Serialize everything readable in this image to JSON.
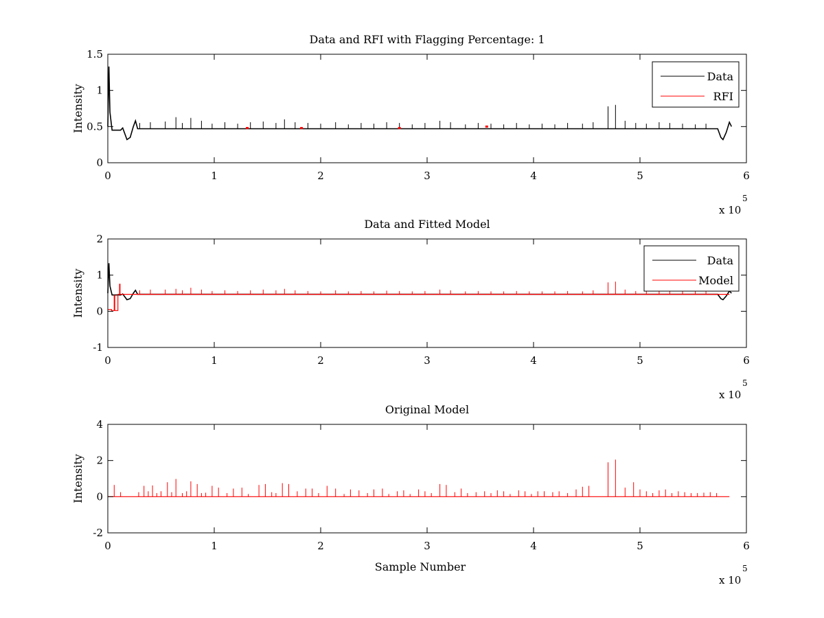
{
  "chart_data": [
    {
      "type": "line",
      "title": "Data and RFI with Flagging Percentage: 1",
      "xlabel": "",
      "ylabel": "Intensity",
      "xlim": [
        0,
        600000
      ],
      "ylim": [
        0,
        1.5
      ],
      "xticks": [
        0,
        1,
        2,
        3,
        4,
        5,
        6
      ],
      "yticks": [
        0,
        0.5,
        1,
        1.5
      ],
      "x_exponent": {
        "base": "x 10",
        "power": "5"
      },
      "grid": false,
      "legend_position": "top-right",
      "baseline": 0.47,
      "series": [
        {
          "name": "Data",
          "color": "#000000",
          "points": [
            [
              0,
              0.5
            ],
            [
              1000,
              1.33
            ],
            [
              2000,
              0.7
            ],
            [
              4000,
              0.45
            ],
            [
              12000,
              0.45
            ],
            [
              14000,
              0.48
            ],
            [
              18000,
              0.32
            ],
            [
              21000,
              0.35
            ],
            [
              24000,
              0.5
            ],
            [
              26000,
              0.58
            ],
            [
              28000,
              0.47
            ],
            [
              573000,
              0.47
            ],
            [
              576000,
              0.35
            ],
            [
              578000,
              0.32
            ],
            [
              581000,
              0.42
            ],
            [
              584000,
              0.56
            ],
            [
              586000,
              0.5
            ]
          ],
          "spikes": [
            [
              30000,
              0.55
            ],
            [
              40000,
              0.56
            ],
            [
              54000,
              0.57
            ],
            [
              64000,
              0.63
            ],
            [
              70000,
              0.55
            ],
            [
              78000,
              0.62
            ],
            [
              88000,
              0.58
            ],
            [
              98000,
              0.54
            ],
            [
              110000,
              0.56
            ],
            [
              122000,
              0.54
            ],
            [
              134000,
              0.56
            ],
            [
              146000,
              0.57
            ],
            [
              158000,
              0.55
            ],
            [
              166000,
              0.6
            ],
            [
              176000,
              0.56
            ],
            [
              188000,
              0.55
            ],
            [
              200000,
              0.54
            ],
            [
              214000,
              0.56
            ],
            [
              226000,
              0.53
            ],
            [
              238000,
              0.55
            ],
            [
              250000,
              0.54
            ],
            [
              262000,
              0.56
            ],
            [
              274000,
              0.55
            ],
            [
              286000,
              0.53
            ],
            [
              298000,
              0.55
            ],
            [
              312000,
              0.58
            ],
            [
              322000,
              0.56
            ],
            [
              336000,
              0.53
            ],
            [
              348000,
              0.55
            ],
            [
              360000,
              0.54
            ],
            [
              372000,
              0.53
            ],
            [
              384000,
              0.55
            ],
            [
              396000,
              0.53
            ],
            [
              408000,
              0.54
            ],
            [
              420000,
              0.53
            ],
            [
              432000,
              0.55
            ],
            [
              446000,
              0.54
            ],
            [
              456000,
              0.56
            ],
            [
              470000,
              0.78
            ],
            [
              477000,
              0.8
            ],
            [
              486000,
              0.58
            ],
            [
              496000,
              0.55
            ],
            [
              506000,
              0.54
            ],
            [
              518000,
              0.56
            ],
            [
              528000,
              0.55
            ],
            [
              540000,
              0.54
            ],
            [
              552000,
              0.53
            ],
            [
              562000,
              0.54
            ]
          ]
        },
        {
          "name": "RFI",
          "color": "#ff0000",
          "markers": [
            [
              131000,
              0.48
            ],
            [
              182000,
              0.48
            ],
            [
              274000,
              0.48
            ],
            [
              356000,
              0.5
            ]
          ]
        }
      ]
    },
    {
      "type": "line",
      "title": "Data and Fitted Model",
      "xlabel": "",
      "ylabel": "Intensity",
      "xlim": [
        0,
        600000
      ],
      "ylim": [
        -1,
        2
      ],
      "xticks": [
        0,
        1,
        2,
        3,
        4,
        5,
        6
      ],
      "yticks": [
        -1,
        0,
        1,
        2
      ],
      "x_exponent": {
        "base": "x 10",
        "power": "5"
      },
      "grid": false,
      "legend_position": "top-right",
      "series": [
        {
          "name": "Data",
          "color": "#000000",
          "points": [
            [
              0,
              0.5
            ],
            [
              1000,
              1.33
            ],
            [
              2000,
              0.7
            ],
            [
              4000,
              0.45
            ],
            [
              12000,
              0.45
            ],
            [
              14000,
              0.48
            ],
            [
              18000,
              0.32
            ],
            [
              21000,
              0.35
            ],
            [
              24000,
              0.5
            ],
            [
              26000,
              0.58
            ],
            [
              28000,
              0.47
            ],
            [
              573000,
              0.47
            ],
            [
              576000,
              0.35
            ],
            [
              578000,
              0.32
            ],
            [
              581000,
              0.42
            ],
            [
              584000,
              0.56
            ],
            [
              586000,
              0.5
            ]
          ]
        },
        {
          "name": "Model",
          "color": "#ff0000",
          "points": [
            [
              0,
              0.05
            ],
            [
              3500,
              0.05
            ],
            [
              3500,
              0.02
            ],
            [
              6000,
              0.02
            ],
            [
              6000,
              0.44
            ],
            [
              6500,
              0.44
            ],
            [
              6500,
              0.02
            ],
            [
              9500,
              0.02
            ],
            [
              9500,
              0.47
            ],
            [
              11000,
              0.47
            ],
            [
              11000,
              0.75
            ],
            [
              11500,
              0.75
            ],
            [
              11500,
              0.47
            ],
            [
              584000,
              0.47
            ]
          ],
          "spikes": [
            [
              30000,
              0.58
            ],
            [
              40000,
              0.6
            ],
            [
              54000,
              0.6
            ],
            [
              64000,
              0.62
            ],
            [
              70000,
              0.58
            ],
            [
              78000,
              0.65
            ],
            [
              88000,
              0.6
            ],
            [
              98000,
              0.56
            ],
            [
              110000,
              0.58
            ],
            [
              122000,
              0.56
            ],
            [
              134000,
              0.58
            ],
            [
              146000,
              0.6
            ],
            [
              158000,
              0.58
            ],
            [
              166000,
              0.62
            ],
            [
              176000,
              0.58
            ],
            [
              188000,
              0.56
            ],
            [
              200000,
              0.55
            ],
            [
              214000,
              0.58
            ],
            [
              226000,
              0.55
            ],
            [
              238000,
              0.56
            ],
            [
              250000,
              0.55
            ],
            [
              262000,
              0.57
            ],
            [
              274000,
              0.56
            ],
            [
              286000,
              0.55
            ],
            [
              298000,
              0.56
            ],
            [
              312000,
              0.6
            ],
            [
              322000,
              0.58
            ],
            [
              336000,
              0.55
            ],
            [
              348000,
              0.56
            ],
            [
              360000,
              0.55
            ],
            [
              372000,
              0.55
            ],
            [
              384000,
              0.56
            ],
            [
              396000,
              0.55
            ],
            [
              408000,
              0.55
            ],
            [
              420000,
              0.55
            ],
            [
              432000,
              0.56
            ],
            [
              446000,
              0.55
            ],
            [
              456000,
              0.58
            ],
            [
              470000,
              0.8
            ],
            [
              477000,
              0.82
            ],
            [
              486000,
              0.6
            ],
            [
              496000,
              0.56
            ],
            [
              506000,
              0.55
            ],
            [
              518000,
              0.57
            ],
            [
              528000,
              0.56
            ],
            [
              540000,
              0.55
            ],
            [
              552000,
              0.55
            ],
            [
              562000,
              0.55
            ]
          ]
        }
      ]
    },
    {
      "type": "line",
      "title": "Original Model",
      "xlabel": "Sample Number",
      "ylabel": "Intensity",
      "xlim": [
        0,
        600000
      ],
      "ylim": [
        -2,
        4
      ],
      "xticks": [
        0,
        1,
        2,
        3,
        4,
        5,
        6
      ],
      "yticks": [
        -2,
        0,
        2,
        4
      ],
      "x_exponent": {
        "base": "x 10",
        "power": "5"
      },
      "grid": false,
      "series": [
        {
          "color": "#ff0000",
          "points": [
            [
              0,
              0
            ],
            [
              584000,
              0
            ]
          ],
          "spikes": [
            [
              6000,
              0.65
            ],
            [
              12000,
              0.25
            ],
            [
              29000,
              0.25
            ],
            [
              34000,
              0.6
            ],
            [
              38000,
              0.3
            ],
            [
              42000,
              0.62
            ],
            [
              46000,
              0.2
            ],
            [
              50000,
              0.3
            ],
            [
              56000,
              0.8
            ],
            [
              60000,
              0.25
            ],
            [
              64000,
              0.98
            ],
            [
              70000,
              0.2
            ],
            [
              74000,
              0.3
            ],
            [
              78000,
              0.85
            ],
            [
              84000,
              0.7
            ],
            [
              88000,
              0.2
            ],
            [
              92000,
              0.22
            ],
            [
              98000,
              0.6
            ],
            [
              104000,
              0.5
            ],
            [
              112000,
              0.2
            ],
            [
              118000,
              0.45
            ],
            [
              126000,
              0.5
            ],
            [
              132000,
              0.15
            ],
            [
              142000,
              0.65
            ],
            [
              148000,
              0.7
            ],
            [
              154000,
              0.25
            ],
            [
              158000,
              0.2
            ],
            [
              164000,
              0.75
            ],
            [
              170000,
              0.7
            ],
            [
              178000,
              0.3
            ],
            [
              186000,
              0.45
            ],
            [
              192000,
              0.45
            ],
            [
              198000,
              0.2
            ],
            [
              206000,
              0.6
            ],
            [
              214000,
              0.45
            ],
            [
              222000,
              0.15
            ],
            [
              228000,
              0.4
            ],
            [
              236000,
              0.35
            ],
            [
              244000,
              0.2
            ],
            [
              250000,
              0.4
            ],
            [
              258000,
              0.45
            ],
            [
              264000,
              0.15
            ],
            [
              272000,
              0.3
            ],
            [
              278000,
              0.35
            ],
            [
              284000,
              0.15
            ],
            [
              292000,
              0.4
            ],
            [
              298000,
              0.3
            ],
            [
              304000,
              0.2
            ],
            [
              312000,
              0.7
            ],
            [
              318000,
              0.65
            ],
            [
              326000,
              0.25
            ],
            [
              332000,
              0.45
            ],
            [
              338000,
              0.2
            ],
            [
              346000,
              0.25
            ],
            [
              354000,
              0.3
            ],
            [
              360000,
              0.2
            ],
            [
              366000,
              0.35
            ],
            [
              372000,
              0.3
            ],
            [
              378000,
              0.15
            ],
            [
              386000,
              0.35
            ],
            [
              392000,
              0.3
            ],
            [
              398000,
              0.15
            ],
            [
              404000,
              0.3
            ],
            [
              410000,
              0.3
            ],
            [
              418000,
              0.25
            ],
            [
              424000,
              0.3
            ],
            [
              432000,
              0.2
            ],
            [
              440000,
              0.4
            ],
            [
              446000,
              0.55
            ],
            [
              452000,
              0.6
            ],
            [
              470000,
              1.9
            ],
            [
              477000,
              2.05
            ],
            [
              486000,
              0.5
            ],
            [
              494000,
              0.8
            ],
            [
              500000,
              0.4
            ],
            [
              506000,
              0.3
            ],
            [
              512000,
              0.2
            ],
            [
              518000,
              0.35
            ],
            [
              524000,
              0.4
            ],
            [
              530000,
              0.2
            ],
            [
              536000,
              0.3
            ],
            [
              542000,
              0.25
            ],
            [
              548000,
              0.2
            ],
            [
              554000,
              0.2
            ],
            [
              560000,
              0.22
            ],
            [
              566000,
              0.25
            ],
            [
              572000,
              0.2
            ]
          ]
        }
      ]
    }
  ]
}
